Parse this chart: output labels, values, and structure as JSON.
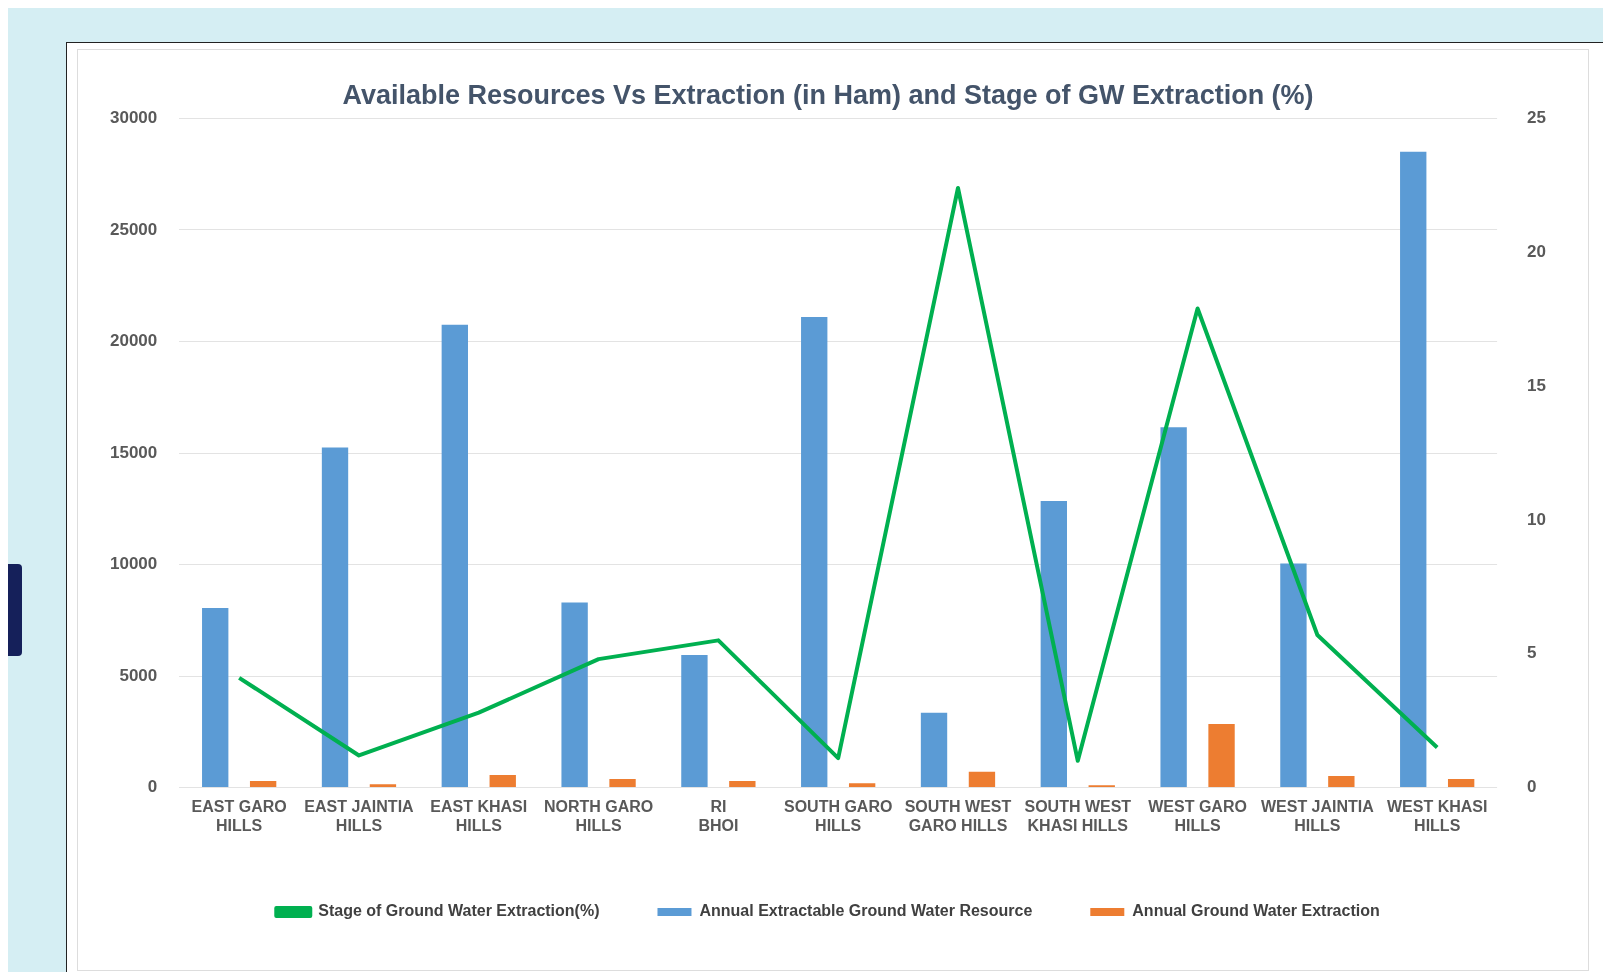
{
  "chart_data": {
    "type": "bar",
    "title": "Available Resources Vs Extraction (in Ham) and Stage of GW Extraction (%)",
    "categories": [
      "EAST GARO HILLS",
      "EAST JAINTIA HILLS",
      "EAST KHASI HILLS",
      "NORTH GARO HILLS",
      "RI BHOI",
      "SOUTH GARO HILLS",
      "SOUTH WEST GARO HILLS",
      "SOUTH WEST KHASI HILLS",
      "WEST GARO HILLS",
      "WEST JAINTIA HILLS",
      "WEST KHASI HILLS"
    ],
    "series": [
      {
        "name": "Annual Extractable Ground Water Resource",
        "color": "#5b9bd5",
        "values": [
          8050,
          15250,
          20750,
          8300,
          5950,
          21100,
          3350,
          12850,
          16150,
          10050,
          28500
        ]
      },
      {
        "name": "Annual Ground Water Extraction",
        "color": "#ed7d31",
        "values": [
          300,
          150,
          570,
          380,
          300,
          200,
          710,
          100,
          2850,
          520,
          380
        ]
      },
      {
        "name": "Stage of Ground Water Extraction(%)",
        "type": "line",
        "axis": "y2",
        "color": "#00b050",
        "values": [
          4.1,
          1.2,
          2.8,
          4.8,
          5.5,
          1.1,
          22.4,
          1.0,
          17.9,
          5.7,
          1.5
        ],
        "marker": "none",
        "line_style": "solid"
      }
    ],
    "ylim": [
      0,
      30000
    ],
    "yticks": [
      0,
      5000,
      10000,
      15000,
      20000,
      25000,
      30000
    ],
    "y2lim": [
      0,
      25
    ],
    "y2ticks": [
      0,
      5,
      10,
      15,
      20,
      25
    ],
    "grid": "y",
    "legend": "bottom"
  }
}
